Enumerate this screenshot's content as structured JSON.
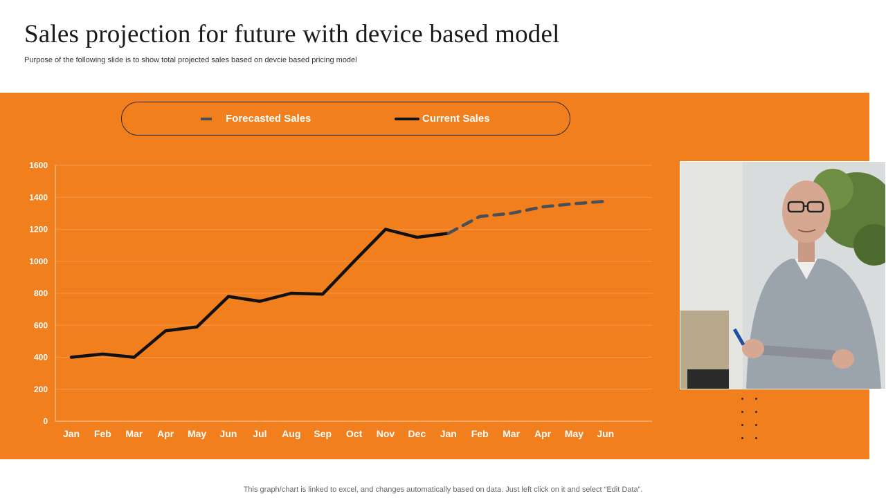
{
  "title": "Sales projection  for future with device based model",
  "subtitle": "Purpose of the following slide is to show total projected sales based on devcie based pricing model",
  "footer": "This graph/chart is linked to excel,  and changes automatically based on data. Just left click on it and select “Edit Data”.",
  "legend": {
    "forecast_label": "Forecasted Sales",
    "current_label": "Current Sales"
  },
  "colors": {
    "panel": "#f27f1e",
    "current": "#111111",
    "forecast": "#4a4f57",
    "text": "#ffffff",
    "grid": "#f59a4a"
  },
  "chart_data": {
    "type": "line",
    "categories": [
      "Jan",
      "Feb",
      "Mar",
      "Apr",
      "May",
      "Jun",
      "Jul",
      "Aug",
      "Sep",
      "Oct",
      "Nov",
      "Dec",
      "Jan",
      "Feb",
      "Mar",
      "Apr",
      "May",
      "Jun"
    ],
    "series": [
      {
        "name": "Current Sales",
        "style": "solid",
        "values": [
          400,
          420,
          400,
          565,
          590,
          780,
          750,
          800,
          795,
          1000,
          1200,
          1150,
          1175,
          null,
          null,
          null,
          null,
          null
        ]
      },
      {
        "name": "Forecasted Sales",
        "style": "dashed",
        "values": [
          null,
          null,
          null,
          null,
          null,
          null,
          null,
          null,
          null,
          null,
          null,
          null,
          1175,
          1280,
          1300,
          1340,
          1360,
          1375
        ]
      }
    ],
    "ylim": [
      0,
      1600
    ],
    "yticks": [
      0,
      200,
      400,
      600,
      800,
      1000,
      1200,
      1400,
      1600
    ],
    "xlabel": "",
    "ylabel": "",
    "title": "",
    "grid": true,
    "legend_position": "top"
  }
}
